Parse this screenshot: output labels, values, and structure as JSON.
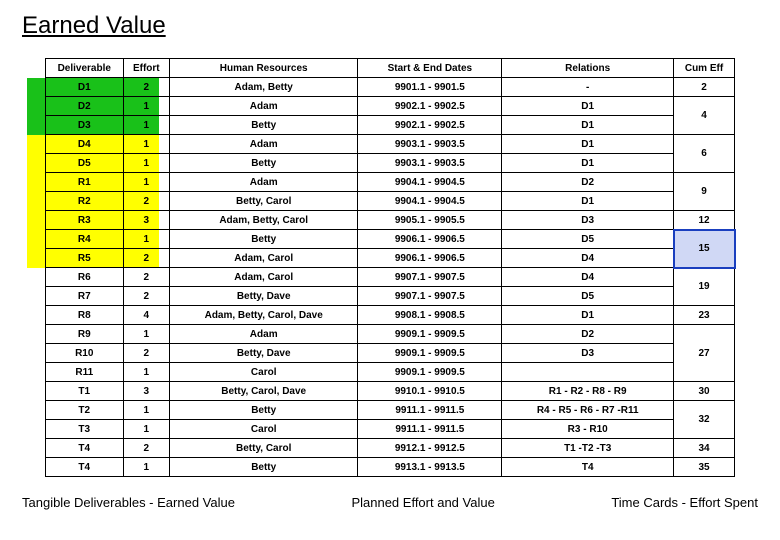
{
  "title": "Earned Value",
  "columns": [
    "Deliverable",
    "Effort",
    "Human Resources",
    "Start & End Dates",
    "Relations",
    "Cum Eff"
  ],
  "rows": [
    {
      "del": "D1",
      "eff": "2",
      "hr": "Adam, Betty",
      "dates": "9901.1 - 9901.5",
      "rel": "-",
      "cum": "2",
      "cumspan": 1,
      "tint": "g"
    },
    {
      "del": "D2",
      "eff": "1",
      "hr": "Adam",
      "dates": "9902.1 - 9902.5",
      "rel": "D1",
      "cum": "4",
      "cumspan": 2,
      "tint": "g"
    },
    {
      "del": "D3",
      "eff": "1",
      "hr": "Betty",
      "dates": "9902.1 - 9902.5",
      "rel": "D1",
      "cum": null,
      "cumspan": 0,
      "tint": "g"
    },
    {
      "del": "D4",
      "eff": "1",
      "hr": "Adam",
      "dates": "9903.1 - 9903.5",
      "rel": "D1",
      "cum": "6",
      "cumspan": 2,
      "tint": "y"
    },
    {
      "del": "D5",
      "eff": "1",
      "hr": "Betty",
      "dates": "9903.1 - 9903.5",
      "rel": "D1",
      "cum": null,
      "cumspan": 0,
      "tint": "y"
    },
    {
      "del": "R1",
      "eff": "1",
      "hr": "Adam",
      "dates": "9904.1 - 9904.5",
      "rel": "D2",
      "cum": "9",
      "cumspan": 2,
      "tint": "y"
    },
    {
      "del": "R2",
      "eff": "2",
      "hr": "Betty, Carol",
      "dates": "9904.1 - 9904.5",
      "rel": "D1",
      "cum": null,
      "cumspan": 0,
      "tint": "y"
    },
    {
      "del": "R3",
      "eff": "3",
      "hr": "Adam, Betty, Carol",
      "dates": "9905.1 - 9905.5",
      "rel": "D3",
      "cum": "12",
      "cumspan": 1,
      "tint": "y"
    },
    {
      "del": "R4",
      "eff": "1",
      "hr": "Betty",
      "dates": "9906.1 - 9906.5",
      "rel": "D5",
      "cum": "15",
      "cumspan": 2,
      "tint": "y",
      "cumbox": true
    },
    {
      "del": "R5",
      "eff": "2",
      "hr": "Adam, Carol",
      "dates": "9906.1 - 9906.5",
      "rel": "D4",
      "cum": null,
      "cumspan": 0,
      "tint": "y"
    },
    {
      "del": "R6",
      "eff": "2",
      "hr": "Adam, Carol",
      "dates": "9907.1 - 9907.5",
      "rel": "D4",
      "cum": "19",
      "cumspan": 2,
      "tint": null
    },
    {
      "del": "R7",
      "eff": "2",
      "hr": "Betty, Dave",
      "dates": "9907.1 - 9907.5",
      "rel": "D5",
      "cum": null,
      "cumspan": 0,
      "tint": null
    },
    {
      "del": "R8",
      "eff": "4",
      "hr": "Adam, Betty, Carol, Dave",
      "dates": "9908.1 - 9908.5",
      "rel": "D1",
      "cum": "23",
      "cumspan": 1,
      "tint": null
    },
    {
      "del": "R9",
      "eff": "1",
      "hr": "Adam",
      "dates": "9909.1 - 9909.5",
      "rel": "D2",
      "cum": "27",
      "cumspan": 3,
      "tint": null
    },
    {
      "del": "R10",
      "eff": "2",
      "hr": "Betty, Dave",
      "dates": "9909.1 - 9909.5",
      "rel": "D3",
      "cum": null,
      "cumspan": 0,
      "tint": null
    },
    {
      "del": "R11",
      "eff": "1",
      "hr": "Carol",
      "dates": "9909.1 - 9909.5",
      "rel": "",
      "cum": null,
      "cumspan": 0,
      "tint": null
    },
    {
      "del": "T1",
      "eff": "3",
      "hr": "Betty, Carol, Dave",
      "dates": "9910.1 - 9910.5",
      "rel": "R1 - R2 - R8 - R9",
      "cum": "30",
      "cumspan": 1,
      "tint": null
    },
    {
      "del": "T2",
      "eff": "1",
      "hr": "Betty",
      "dates": "9911.1 - 9911.5",
      "rel": "R4 - R5 - R6 - R7 -R11",
      "cum": "32",
      "cumspan": 2,
      "tint": null
    },
    {
      "del": "T3",
      "eff": "1",
      "hr": "Carol",
      "dates": "9911.1 - 9911.5",
      "rel": "R3 - R10",
      "cum": null,
      "cumspan": 0,
      "tint": null
    },
    {
      "del": "T4",
      "eff": "2",
      "hr": "Betty, Carol",
      "dates": "9912.1 - 9912.5",
      "rel": "T1 -T2 -T3",
      "cum": "34",
      "cumspan": 1,
      "tint": null
    },
    {
      "del": "T4",
      "eff": "1",
      "hr": "Betty",
      "dates": "9913.1 - 9913.5",
      "rel": "T4",
      "cum": "35",
      "cumspan": 1,
      "tint": null
    }
  ],
  "highlight_colors": {
    "g": "#19c119",
    "y": "#ffff00",
    "box_border": "#1a3fbf",
    "box_fill": "#d0d8f5"
  },
  "footer": {
    "left": "Tangible Deliverables - Earned Value",
    "mid": "Planned Effort and Value",
    "right": "Time Cards - Effort Spent"
  }
}
